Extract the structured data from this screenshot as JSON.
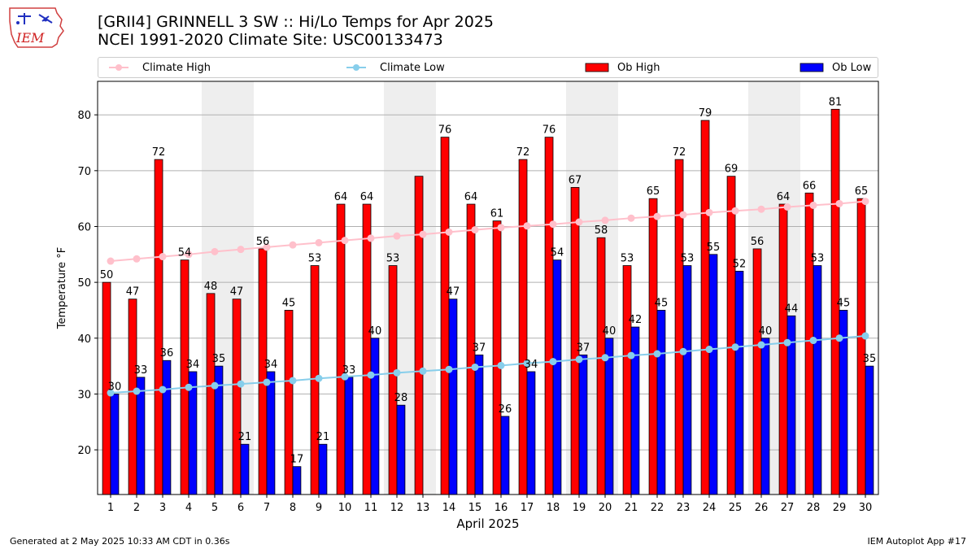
{
  "header": {
    "title_line1": "[GRII4] GRINNELL 3 SW :: Hi/Lo Temps for Apr 2025",
    "title_line2": "NCEI 1991-2020 Climate Site: USC00133473",
    "logo_text": "IEM"
  },
  "legend": [
    {
      "label": "Climate High",
      "color": "#ffc0cb",
      "kind": "line"
    },
    {
      "label": "Climate Low",
      "color": "#87ceeb",
      "kind": "line"
    },
    {
      "label": "Ob High",
      "color": "#ff0000",
      "kind": "bar"
    },
    {
      "label": "Ob Low",
      "color": "#0000ff",
      "kind": "bar"
    }
  ],
  "footer": {
    "generated": "Generated at 2 May 2025 10:33 AM CDT in 0.36s",
    "app": "IEM Autoplot App #17"
  },
  "chart_data": {
    "type": "bar",
    "xlabel": "April 2025",
    "ylabel": "Temperature °F",
    "ylim": [
      12,
      86
    ],
    "yticks": [
      20,
      30,
      40,
      50,
      60,
      70,
      80
    ],
    "grid": true,
    "legend_position": "top",
    "categories": [
      "1",
      "2",
      "3",
      "4",
      "5",
      "6",
      "7",
      "8",
      "9",
      "10",
      "11",
      "12",
      "13",
      "14",
      "15",
      "16",
      "17",
      "18",
      "19",
      "20",
      "21",
      "22",
      "23",
      "24",
      "25",
      "26",
      "27",
      "28",
      "29",
      "30"
    ],
    "weekend_shading": [
      [
        "5",
        "6"
      ],
      [
        "12",
        "13"
      ],
      [
        "19",
        "20"
      ],
      [
        "26",
        "27"
      ]
    ],
    "series": [
      {
        "name": "Ob High",
        "type": "bar",
        "color": "#ff0000",
        "values": [
          50,
          47,
          72,
          54,
          48,
          47,
          56,
          45,
          53,
          64,
          64,
          53,
          69,
          76,
          64,
          61,
          72,
          76,
          67,
          58,
          53,
          65,
          72,
          79,
          69,
          56,
          64,
          66,
          81,
          65
        ],
        "labels": [
          50,
          47,
          72,
          54,
          48,
          47,
          56,
          45,
          53,
          64,
          64,
          53,
          null,
          76,
          64,
          61,
          72,
          76,
          67,
          58,
          53,
          65,
          72,
          79,
          69,
          56,
          64,
          66,
          81,
          65
        ]
      },
      {
        "name": "Ob Low",
        "type": "bar",
        "color": "#0000ff",
        "values": [
          30,
          33,
          36,
          34,
          35,
          21,
          34,
          17,
          21,
          33,
          40,
          28,
          null,
          47,
          37,
          26,
          34,
          54,
          37,
          40,
          42,
          45,
          53,
          55,
          52,
          40,
          44,
          53,
          45,
          35
        ],
        "labels": [
          30,
          33,
          36,
          34,
          35,
          21,
          34,
          17,
          21,
          33,
          40,
          28,
          null,
          47,
          37,
          26,
          34,
          54,
          37,
          40,
          42,
          45,
          53,
          55,
          52,
          40,
          44,
          53,
          45,
          35
        ]
      },
      {
        "name": "Climate High",
        "type": "line",
        "color": "#ffc0cb",
        "values": [
          53.8,
          54.2,
          54.6,
          55.0,
          55.5,
          55.9,
          56.3,
          56.7,
          57.1,
          57.5,
          57.9,
          58.3,
          58.6,
          59.0,
          59.4,
          59.8,
          60.1,
          60.4,
          60.8,
          61.1,
          61.5,
          61.8,
          62.1,
          62.5,
          62.8,
          63.1,
          63.5,
          63.8,
          64.1,
          64.5
        ]
      },
      {
        "name": "Climate Low",
        "type": "line",
        "color": "#87ceeb",
        "values": [
          30.2,
          30.5,
          30.8,
          31.2,
          31.5,
          31.8,
          32.1,
          32.4,
          32.8,
          33.1,
          33.4,
          33.8,
          34.1,
          34.4,
          34.8,
          35.1,
          35.5,
          35.8,
          36.2,
          36.5,
          36.9,
          37.2,
          37.6,
          38.0,
          38.4,
          38.8,
          39.2,
          39.6,
          40.0,
          40.4
        ]
      }
    ]
  }
}
